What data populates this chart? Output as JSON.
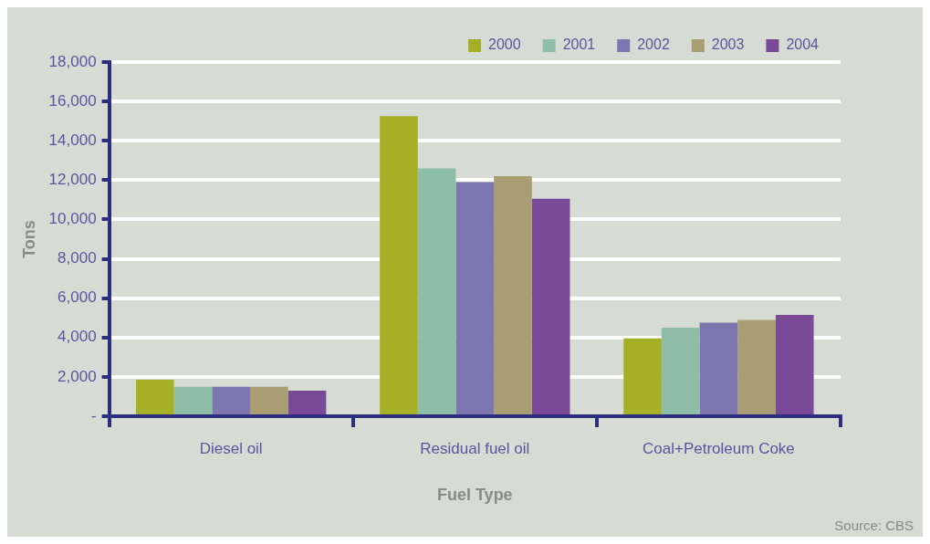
{
  "chart_data": {
    "type": "bar",
    "xlabel": "Fuel Type",
    "ylabel": "Tons",
    "categories": [
      "Diesel oil",
      "Residual fuel oil",
      "Coal+Petroleum Coke"
    ],
    "series": [
      {
        "name": "2000",
        "color": "#a6b027",
        "values": [
          1850,
          15250,
          3950
        ]
      },
      {
        "name": "2001",
        "color": "#8ebea8",
        "values": [
          1500,
          12600,
          4500
        ]
      },
      {
        "name": "2002",
        "color": "#7e76b0",
        "values": [
          1500,
          11900,
          4750
        ]
      },
      {
        "name": "2003",
        "color": "#a99d74",
        "values": [
          1500,
          12200,
          4900
        ]
      },
      {
        "name": "2004",
        "color": "#794998",
        "values": [
          1300,
          11050,
          5150
        ]
      }
    ],
    "ylim": [
      0,
      18000
    ],
    "yticks": [
      {
        "value": 0,
        "label": "-"
      },
      {
        "value": 2000,
        "label": "2,000"
      },
      {
        "value": 4000,
        "label": "4,000"
      },
      {
        "value": 6000,
        "label": "6,000"
      },
      {
        "value": 8000,
        "label": "8,000"
      },
      {
        "value": 10000,
        "label": "10,000"
      },
      {
        "value": 12000,
        "label": "12,000"
      },
      {
        "value": 14000,
        "label": "14,000"
      },
      {
        "value": 16000,
        "label": "16,000"
      },
      {
        "value": 18000,
        "label": "18,000"
      }
    ],
    "grid": "y",
    "legend": "top right",
    "annotations": [
      "Source: CBS"
    ]
  }
}
